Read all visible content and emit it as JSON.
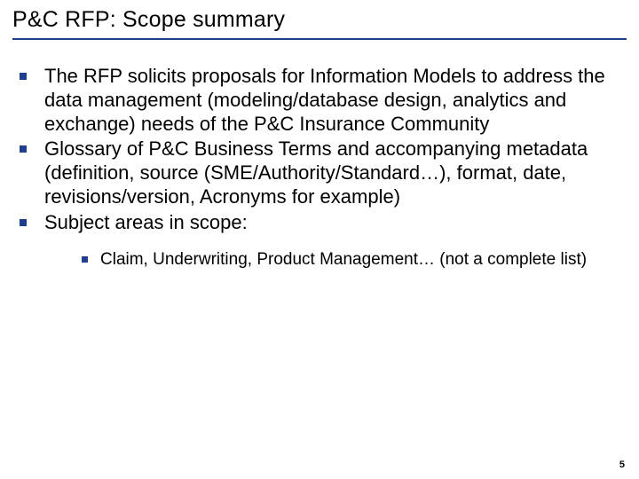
{
  "colors": {
    "text": "#000000",
    "title_border": "#1f3f8c",
    "bullet_square": "#1f3f8c",
    "background": "#ffffff",
    "page_number": "#000000"
  },
  "typography": {
    "title_fontsize": 25,
    "body_fontsize": 22,
    "sub_fontsize": 19,
    "page_number_fontsize": 11,
    "font_family": "Arial"
  },
  "title": "P&C RFP: Scope summary",
  "bullets": [
    {
      "text": "The RFP solicits proposals for Information Models to address the data management (modeling/database design, analytics and exchange) needs of the P&C Insurance Community"
    },
    {
      "text": "Glossary of P&C Business Terms and accompanying metadata (definition, source (SME/Authority/Standard…), format, date, revisions/version, Acronyms for example)"
    },
    {
      "text": "Subject areas in scope:",
      "sub": [
        {
          "text": "Claim, Underwriting, Product Management… (not a complete list)"
        }
      ]
    }
  ],
  "page_number": "5"
}
